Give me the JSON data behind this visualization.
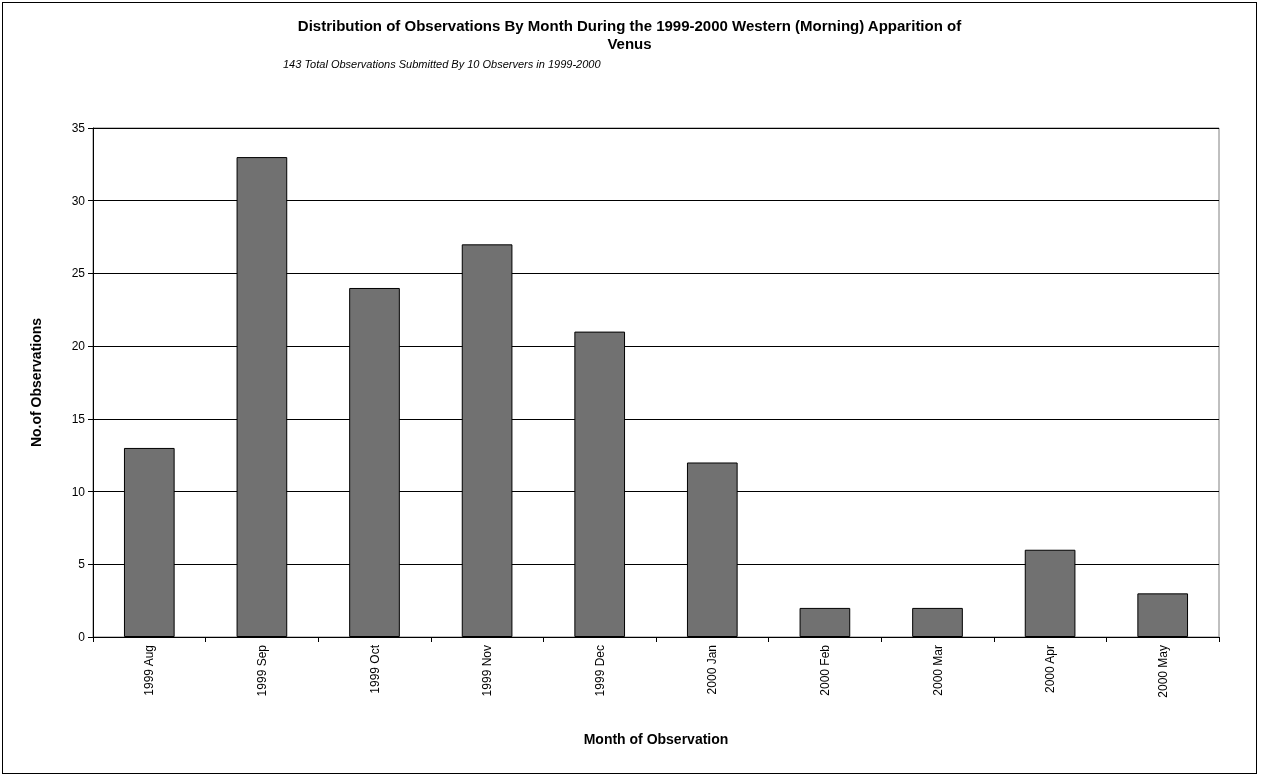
{
  "chart_data": {
    "type": "bar",
    "title": "Distribution of Observations By Month During the 1999-2000 Western (Morning) Apparition of\nVenus",
    "subtitle": "143 Total Observations Submitted By 10 Observers in 1999-2000",
    "xlabel": "Month of Observation",
    "ylabel": "No.of Observations",
    "categories": [
      "1999 Aug",
      "1999 Sep",
      "1999 Oct",
      "1999 Nov",
      "1999 Dec",
      "2000 Jan",
      "2000 Feb",
      "2000 Mar",
      "2000 Apr",
      "2000 May"
    ],
    "values": [
      13,
      33,
      24,
      27,
      21,
      12,
      2,
      2,
      6,
      3
    ],
    "color": "#717171",
    "ylim": [
      0,
      35
    ],
    "yticks": [
      0,
      5,
      10,
      15,
      20,
      25,
      30,
      35
    ],
    "grid": "y"
  }
}
